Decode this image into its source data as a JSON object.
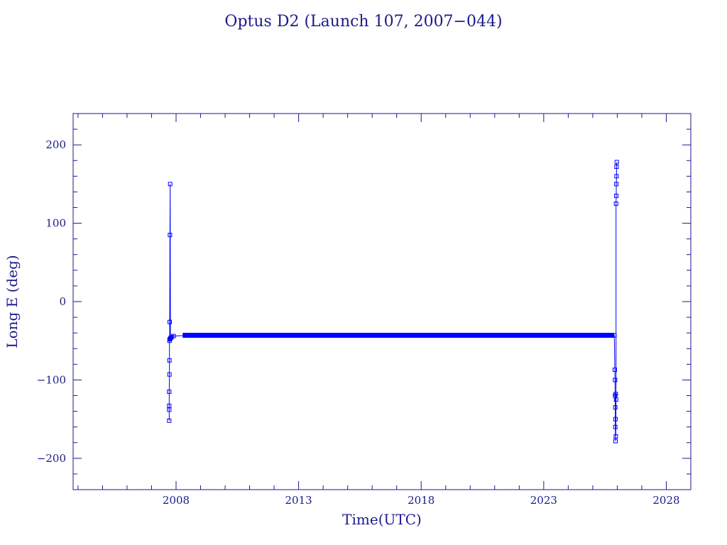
{
  "chart_data": {
    "type": "line",
    "title": "Optus D2 (Launch 107, 2007−044)",
    "xlabel": "Time(UTC)",
    "ylabel": "Long E (deg)",
    "xlim": [
      2003.8,
      2029.0
    ],
    "ylim": [
      -240,
      240
    ],
    "xticks": [
      2008,
      2013,
      2018,
      2023,
      2028
    ],
    "xtick_labels": [
      "2008",
      "2013",
      "2018",
      "2023",
      "2028"
    ],
    "yticks": [
      -200,
      -100,
      0,
      100,
      200
    ],
    "ytick_labels": [
      "−200",
      "−100",
      "0",
      "100",
      "200"
    ],
    "grid": false,
    "colors": {
      "axis": "#1a1a8c",
      "series": "#0000ff"
    },
    "series": [
      {
        "points": [
          [
            2007.72,
            -152
          ],
          [
            2007.72,
            -138
          ],
          [
            2007.72,
            -133
          ],
          [
            2007.72,
            -115
          ],
          [
            2007.73,
            -93
          ],
          [
            2007.73,
            -75
          ],
          [
            2007.73,
            -50
          ],
          [
            2007.74,
            -48
          ],
          [
            2007.74,
            -26
          ],
          [
            2007.75,
            85
          ],
          [
            2007.76,
            150
          ],
          [
            2007.77,
            -47
          ],
          [
            2007.79,
            -46
          ],
          [
            2007.82,
            -45
          ],
          [
            2007.9,
            -44
          ],
          [
            2008.5,
            -43
          ],
          [
            2010,
            -43
          ],
          [
            2012,
            -43
          ],
          [
            2014,
            -43
          ],
          [
            2016,
            -43
          ],
          [
            2018,
            -43
          ],
          [
            2020,
            -43
          ],
          [
            2022,
            -43
          ],
          [
            2024,
            -43
          ],
          [
            2025.5,
            -43
          ],
          [
            2025.88,
            -43
          ],
          [
            2025.9,
            -87
          ],
          [
            2025.91,
            -100
          ],
          [
            2025.91,
            -120
          ],
          [
            2025.92,
            -135
          ],
          [
            2025.92,
            -160
          ],
          [
            2025.93,
            -178
          ],
          [
            2025.93,
            -150
          ],
          [
            2025.94,
            -118
          ],
          [
            2025.94,
            -172
          ],
          [
            2025.95,
            -125
          ],
          [
            2025.95,
            125
          ],
          [
            2025.96,
            135
          ],
          [
            2025.96,
            150
          ],
          [
            2025.97,
            160
          ],
          [
            2025.97,
            172
          ],
          [
            2025.98,
            178
          ]
        ]
      }
    ]
  }
}
